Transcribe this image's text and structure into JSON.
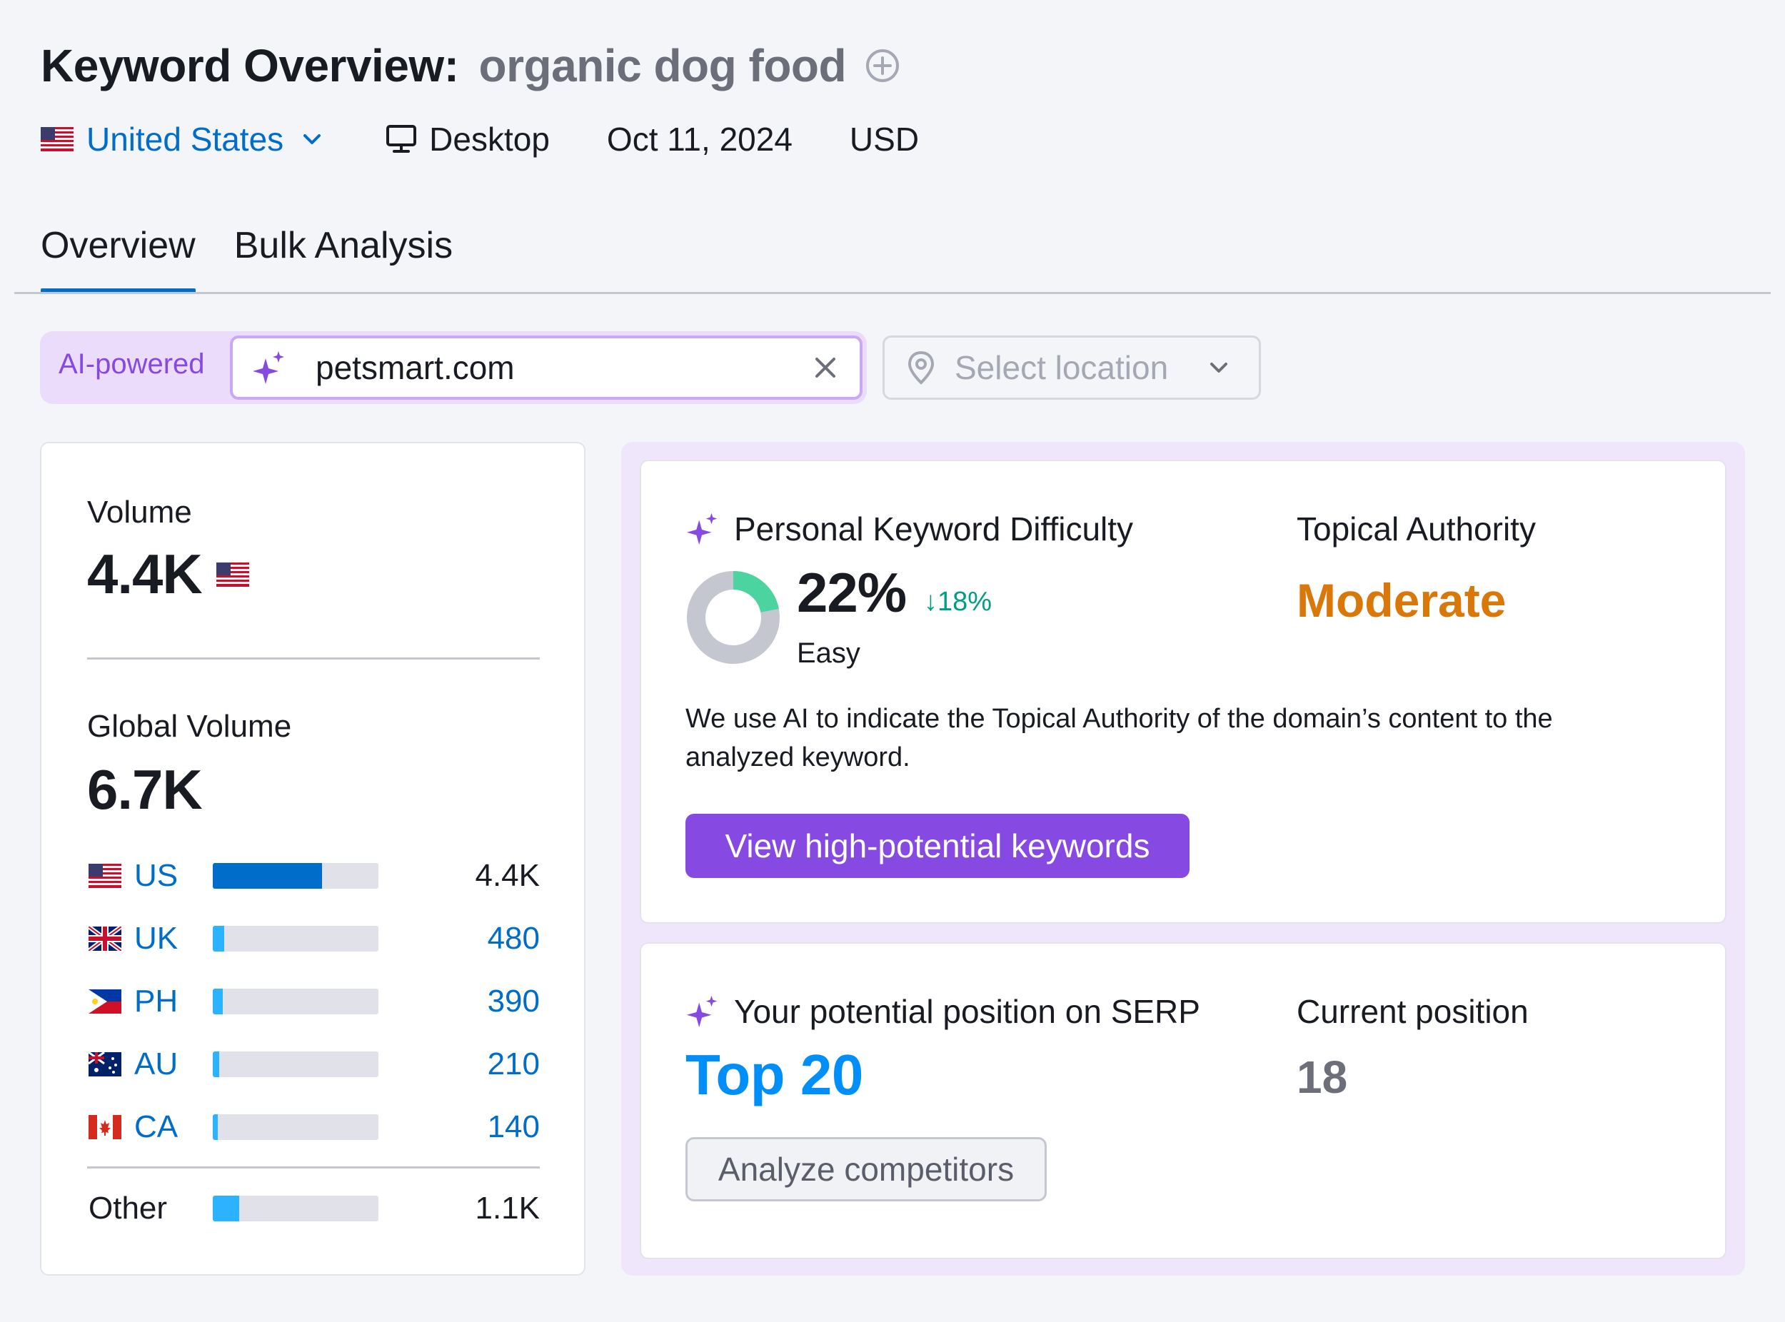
{
  "header": {
    "title": "Keyword Overview:",
    "keyword": "organic dog food",
    "add_icon": "plus-circle-icon"
  },
  "meta": {
    "database": "United States",
    "device": "Desktop",
    "date": "Oct 11, 2024",
    "currency": "USD"
  },
  "tabs": [
    {
      "label": "Overview",
      "active": true
    },
    {
      "label": "Bulk Analysis",
      "active": false
    }
  ],
  "ai_search": {
    "badge": "AI-powered",
    "value": "petsmart.com",
    "location_placeholder": "Select location"
  },
  "volume": {
    "label": "Volume",
    "value": "4.4K",
    "global_label": "Global Volume",
    "global_value": "6.7K",
    "countries": [
      {
        "code": "US",
        "value": "4.4K",
        "share": 0.66
      },
      {
        "code": "UK",
        "value": "480",
        "share": 0.07
      },
      {
        "code": "PH",
        "value": "390",
        "share": 0.06
      },
      {
        "code": "AU",
        "value": "210",
        "share": 0.04
      },
      {
        "code": "CA",
        "value": "140",
        "share": 0.03
      }
    ],
    "other": {
      "label": "Other",
      "value": "1.1K",
      "share": 0.16
    }
  },
  "pkd": {
    "label": "Personal Keyword Difficulty",
    "value": "22%",
    "percent": 22,
    "change": "18%",
    "level": "Easy",
    "color_fill": "#4bd4a0",
    "color_track": "#c4c7cf"
  },
  "topical_authority": {
    "label": "Topical Authority",
    "value": "Moderate",
    "color": "#d97709"
  },
  "description": "We use AI to indicate the Topical Authority of the domain’s content to the analyzed keyword.",
  "buttons": {
    "view_keywords": "View high-potential keywords",
    "analyze_competitors": "Analyze competitors"
  },
  "serp": {
    "potential_label": "Your potential position on SERP",
    "potential_value": "Top 20",
    "current_label": "Current position",
    "current_value": "18"
  },
  "colors": {
    "accent": "#006dca",
    "purple": "#8649e1",
    "panel": "#efe6fb"
  }
}
